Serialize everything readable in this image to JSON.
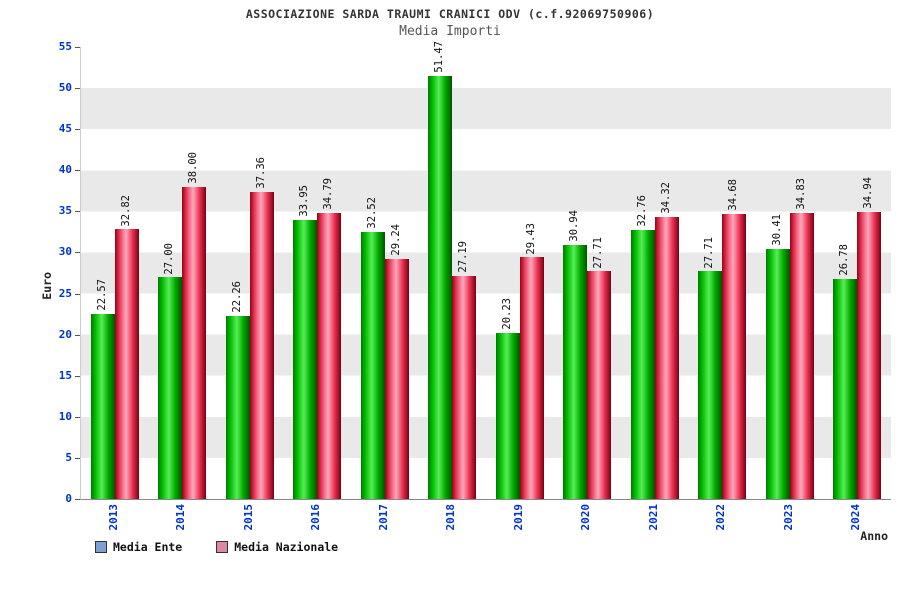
{
  "header": {
    "title": "ASSOCIAZIONE SARDA TRAUMI CRANICI ODV (c.f.92069750906)",
    "subtitle": "Media Importi"
  },
  "chart_data": {
    "type": "bar",
    "title": "ASSOCIAZIONE SARDA TRAUMI CRANICI ODV (c.f.92069750906)",
    "subtitle": "Media Importi",
    "xlabel": "Anno",
    "ylabel": "Euro",
    "ylim": [
      0,
      55
    ],
    "ytick_step": 5,
    "grid": "alternating-horizontal-bands",
    "legend_position": "bottom-left",
    "categories": [
      "2013",
      "2014",
      "2015",
      "2016",
      "2017",
      "2018",
      "2019",
      "2020",
      "2021",
      "2022",
      "2023",
      "2024"
    ],
    "series": [
      {
        "name": "Media Ente",
        "color": "#00bb00",
        "values": [
          "22.57",
          "27.00",
          "22.26",
          "33.95",
          "32.52",
          "51.47",
          "20.23",
          "30.94",
          "32.76",
          "27.71",
          "30.41",
          "26.78"
        ]
      },
      {
        "name": "Media Nazionale",
        "color": "#ee3355",
        "values": [
          "32.82",
          "38.00",
          "37.36",
          "34.79",
          "29.24",
          "27.19",
          "29.43",
          "27.71",
          "34.32",
          "34.68",
          "34.83",
          "34.94"
        ]
      }
    ],
    "legend": [
      {
        "label": "Media Ente",
        "marker_color": "#7aa1d2"
      },
      {
        "label": "Media Nazionale",
        "marker_color": "#d98aa0"
      }
    ],
    "axis_label_color": "#0033cc"
  }
}
